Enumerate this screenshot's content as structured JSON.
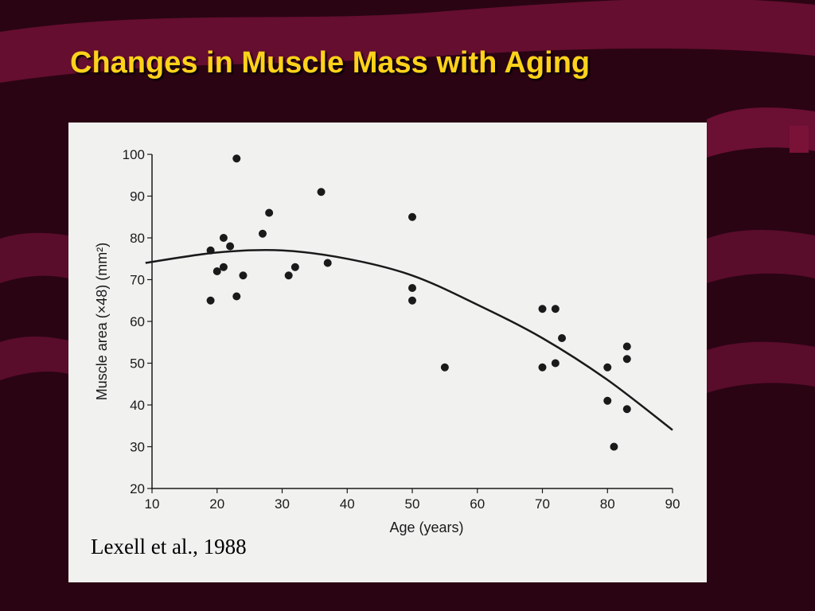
{
  "slide": {
    "title": "Changes in Muscle Mass with Aging",
    "citation": "Lexell et al., 1988"
  },
  "colors": {
    "background": "#2a0413",
    "swoosh": "#6b0f33",
    "title": "#ffd21a",
    "panel": "#f1f1f0",
    "ink": "#1a1a1a"
  },
  "chart_data": {
    "type": "scatter",
    "xlabel": "Age (years)",
    "ylabel": "Muscle area (×48) (mm²)",
    "xlim": [
      10,
      90
    ],
    "ylim": [
      20,
      100
    ],
    "xticks": [
      10,
      20,
      30,
      40,
      50,
      60,
      70,
      80,
      90
    ],
    "yticks": [
      20,
      30,
      40,
      50,
      60,
      70,
      80,
      90,
      100
    ],
    "grid": false,
    "legend": "none",
    "points": [
      {
        "x": 19,
        "y": 77
      },
      {
        "x": 19,
        "y": 65
      },
      {
        "x": 21,
        "y": 80
      },
      {
        "x": 21,
        "y": 73
      },
      {
        "x": 20,
        "y": 72
      },
      {
        "x": 22,
        "y": 78
      },
      {
        "x": 23,
        "y": 99
      },
      {
        "x": 23,
        "y": 66
      },
      {
        "x": 24,
        "y": 71
      },
      {
        "x": 27,
        "y": 81
      },
      {
        "x": 28,
        "y": 86
      },
      {
        "x": 31,
        "y": 71
      },
      {
        "x": 32,
        "y": 73
      },
      {
        "x": 36,
        "y": 91
      },
      {
        "x": 37,
        "y": 74
      },
      {
        "x": 50,
        "y": 85
      },
      {
        "x": 50,
        "y": 68
      },
      {
        "x": 50,
        "y": 65
      },
      {
        "x": 55,
        "y": 49
      },
      {
        "x": 70,
        "y": 63
      },
      {
        "x": 70,
        "y": 49
      },
      {
        "x": 72,
        "y": 63
      },
      {
        "x": 72,
        "y": 50
      },
      {
        "x": 73,
        "y": 56
      },
      {
        "x": 80,
        "y": 49
      },
      {
        "x": 80,
        "y": 41
      },
      {
        "x": 81,
        "y": 30
      },
      {
        "x": 83,
        "y": 54
      },
      {
        "x": 83,
        "y": 51
      },
      {
        "x": 83,
        "y": 39
      }
    ],
    "trend": [
      {
        "x": 9,
        "y": 74
      },
      {
        "x": 20,
        "y": 76.5
      },
      {
        "x": 30,
        "y": 77
      },
      {
        "x": 40,
        "y": 75
      },
      {
        "x": 50,
        "y": 71
      },
      {
        "x": 60,
        "y": 64
      },
      {
        "x": 70,
        "y": 56
      },
      {
        "x": 80,
        "y": 46
      },
      {
        "x": 90,
        "y": 34
      }
    ]
  }
}
